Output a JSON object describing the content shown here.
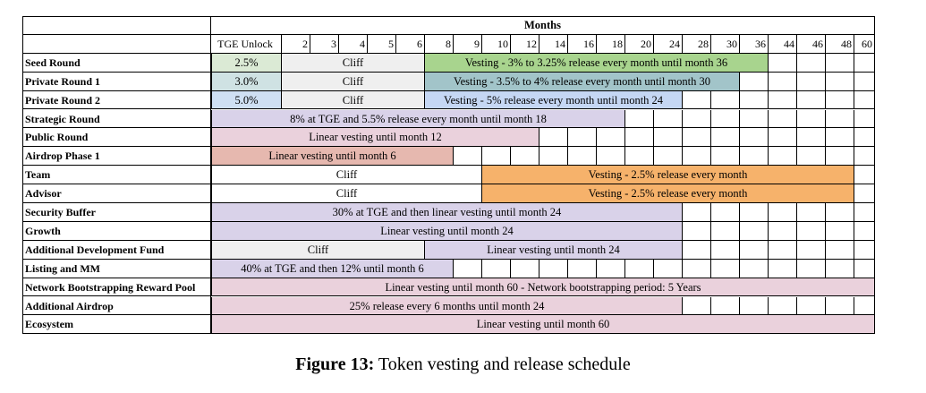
{
  "header": {
    "months_title": "Months",
    "tge_label": "TGE Unlock",
    "months": [
      "2",
      "3",
      "4",
      "5",
      "6",
      "8",
      "9",
      "10",
      "12",
      "14",
      "16",
      "18",
      "20",
      "24",
      "28",
      "30",
      "36",
      "44",
      "46",
      "48",
      "60"
    ]
  },
  "rows": [
    {
      "label": "Seed Round",
      "bars": [
        {
          "text": "2.5%",
          "from": 0,
          "to": 1,
          "color": "#dbead5"
        },
        {
          "text": "Cliff",
          "from": 1,
          "to": 6,
          "color": "#efefef"
        },
        {
          "text": "Vesting - 3% to 3.25% release every month until month 36",
          "from": 6,
          "to": 18,
          "color": "#a8d48e"
        }
      ]
    },
    {
      "label": "Private Round 1",
      "bars": [
        {
          "text": "3.0%",
          "from": 0,
          "to": 1,
          "color": "#cfe2e3"
        },
        {
          "text": "Cliff",
          "from": 1,
          "to": 6,
          "color": "#efefef"
        },
        {
          "text": "Vesting - 3.5%  to 4% release every month until month 30",
          "from": 6,
          "to": 17,
          "color": "#a2c4c9"
        }
      ]
    },
    {
      "label": "Private Round 2",
      "bars": [
        {
          "text": "5.0%",
          "from": 0,
          "to": 1,
          "color": "#cfe0f3"
        },
        {
          "text": "Cliff",
          "from": 1,
          "to": 6,
          "color": "#efefef"
        },
        {
          "text": "Vesting - 5% release every month until month 24",
          "from": 6,
          "to": 15,
          "color": "#c5d7f4"
        }
      ]
    },
    {
      "label": "Strategic Round",
      "bars": [
        {
          "text": "8% at TGE and 5.5% release every month until month 18",
          "from": 0,
          "to": 13,
          "color": "#d9d2e9"
        }
      ]
    },
    {
      "label": "Public Round",
      "bars": [
        {
          "text": "Linear vesting until month 12",
          "from": 0,
          "to": 10,
          "color": "#ead1dc"
        }
      ]
    },
    {
      "label": "Airdrop Phase 1",
      "bars": [
        {
          "text": "Linear vesting until month 6",
          "from": 0,
          "to": 7,
          "color": "#e6b8af"
        }
      ]
    },
    {
      "label": "Team",
      "bars": [
        {
          "text": "Cliff",
          "from": 0,
          "to": 8,
          "color": "#ffffff"
        },
        {
          "text": "Vesting - 2.5% release every month",
          "from": 8,
          "to": 21,
          "color": "#f6b26b"
        }
      ]
    },
    {
      "label": "Advisor",
      "bars": [
        {
          "text": "Cliff",
          "from": 0,
          "to": 8,
          "color": "#ffffff"
        },
        {
          "text": "Vesting - 2.5% release every month",
          "from": 8,
          "to": 21,
          "color": "#f6b26b"
        }
      ]
    },
    {
      "label": "Security Buffer",
      "bars": [
        {
          "text": "30% at TGE and then linear vesting until month 24",
          "from": 0,
          "to": 15,
          "color": "#d9d2e9"
        }
      ]
    },
    {
      "label": "Growth",
      "bars": [
        {
          "text": "Linear vesting until month 24",
          "from": 0,
          "to": 15,
          "color": "#d9d2e9"
        }
      ]
    },
    {
      "label": "Additional Development Fund",
      "bars": [
        {
          "text": "Cliff",
          "from": 0,
          "to": 6,
          "color": "#efefef"
        },
        {
          "text": "Linear vesting until month 24",
          "from": 6,
          "to": 15,
          "color": "#d9d2e9"
        }
      ]
    },
    {
      "label": "Listing and MM",
      "bars": [
        {
          "text": "40% at TGE and then 12% until month 6",
          "from": 0,
          "to": 7,
          "color": "#d9d2e9"
        }
      ]
    },
    {
      "label": "Network Bootstrapping Reward Pool",
      "bars": [
        {
          "text": "Linear vesting until month 60 - Network bootstrapping period: 5 Years",
          "from": 0,
          "to": 22,
          "color": "#ead1dc"
        }
      ]
    },
    {
      "label": "Additional Airdrop",
      "bars": [
        {
          "text": "25% release every 6 months until month 24",
          "from": 0,
          "to": 15,
          "color": "#ead1dc"
        }
      ]
    },
    {
      "label": "Ecosystem",
      "bars": [
        {
          "text": "Linear vesting until month 60",
          "from": 0,
          "to": 22,
          "color": "#ead1dc"
        }
      ]
    }
  ],
  "caption": {
    "figure": "Figure 13:",
    "text": " Token vesting and release schedule"
  }
}
